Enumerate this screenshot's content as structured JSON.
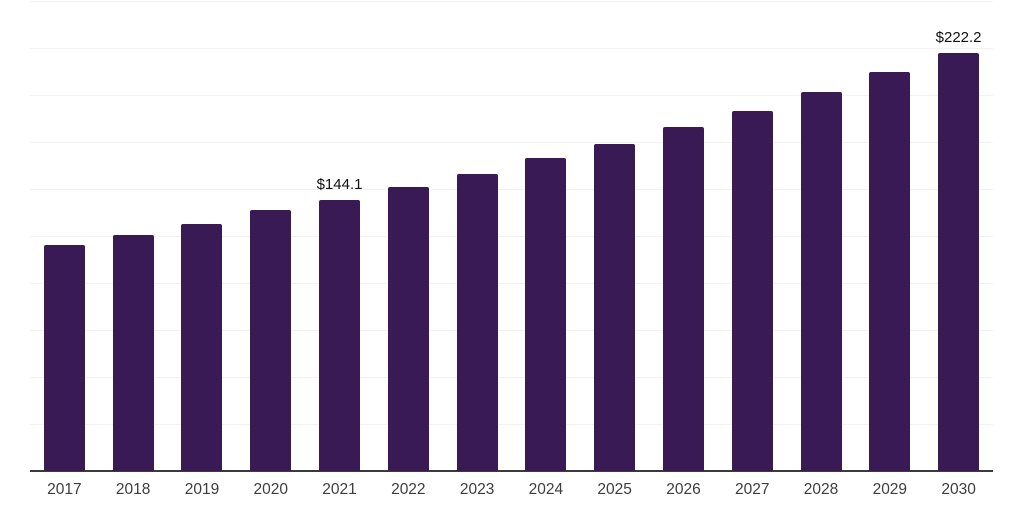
{
  "chart_data": {
    "type": "bar",
    "categories": [
      "2017",
      "2018",
      "2019",
      "2020",
      "2021",
      "2022",
      "2023",
      "2024",
      "2025",
      "2026",
      "2027",
      "2028",
      "2029",
      "2030"
    ],
    "values": [
      120.1,
      125.4,
      131.3,
      138.5,
      144.1,
      151.0,
      158.1,
      166.6,
      174.0,
      183.0,
      191.5,
      201.6,
      212.3,
      222.2
    ],
    "data_labels": [
      {
        "category": "2021",
        "text": "$144.1"
      },
      {
        "category": "2030",
        "text": "$222.2"
      }
    ],
    "title": "",
    "xlabel": "",
    "ylabel": "",
    "ylim": [
      0,
      250
    ],
    "gridline_step": 25,
    "grid": "horizontal-only",
    "legend": "none",
    "y_tick_labels_shown": false
  },
  "colors": {
    "background": "#ffffff",
    "bar": "#3A1A55",
    "gridline": "#f2f2f2",
    "axis_line": "#3b3b3b",
    "tick_label": "#3d3d3d",
    "data_label": "#111111"
  }
}
